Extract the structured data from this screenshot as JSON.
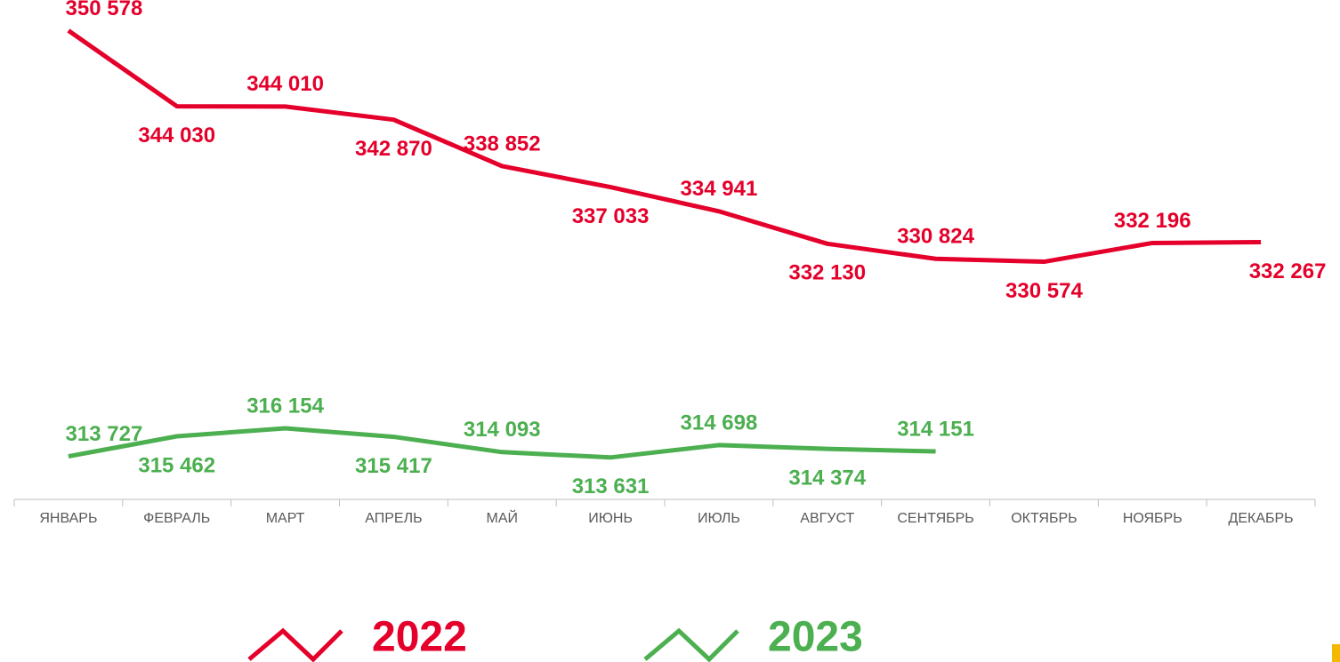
{
  "chart_data": {
    "type": "line",
    "categories": [
      "ЯНВАРЬ",
      "ФЕВРАЛЬ",
      "МАРТ",
      "АПРЕЛЬ",
      "МАЙ",
      "ИЮНЬ",
      "ИЮЛЬ",
      "АВГУСТ",
      "СЕНТЯБРЬ",
      "ОКТЯБРЬ",
      "НОЯБРЬ",
      "ДЕКАБРЬ"
    ],
    "series": [
      {
        "name": "2022",
        "color": "#e4002b",
        "values": [
          350578,
          344030,
          344010,
          342870,
          338852,
          337033,
          334941,
          332130,
          330824,
          330574,
          332196,
          332267
        ],
        "value_labels": [
          "350 578",
          "344 030",
          "344 010",
          "342 870",
          "338 852",
          "337 033",
          "334 941",
          "332 130",
          "330 824",
          "330 574",
          "332 196",
          "332 267"
        ]
      },
      {
        "name": "2023",
        "color": "#4caf50",
        "values": [
          313727,
          315462,
          316154,
          315417,
          314093,
          313631,
          314698,
          314374,
          314151,
          null,
          null,
          null
        ],
        "value_labels": [
          "313 727",
          "315 462",
          "316 154",
          "315 417",
          "314 093",
          "313 631",
          "314 698",
          "314 374",
          "314 151",
          null,
          null,
          null
        ]
      }
    ],
    "ylim": [
      310000,
      352000
    ],
    "legend": "bottom"
  }
}
